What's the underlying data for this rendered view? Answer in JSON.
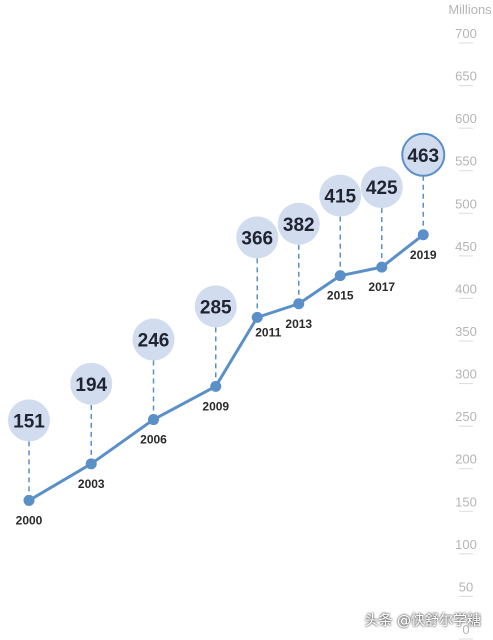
{
  "chart_data": {
    "type": "line",
    "unit_label": "Millions",
    "x": [
      "2000",
      "2003",
      "2006",
      "2009",
      "2011",
      "2013",
      "2015",
      "2017",
      "2019"
    ],
    "values": [
      151,
      194,
      246,
      285,
      366,
      382,
      415,
      425,
      463
    ],
    "ylim": [
      0,
      700
    ],
    "yticks": [
      0,
      50,
      100,
      150,
      200,
      250,
      300,
      350,
      400,
      450,
      500,
      550,
      600,
      650,
      700
    ],
    "highlight_last": true,
    "colors": {
      "line": "#5b8fc7",
      "bubble_fill": "#d2dcef",
      "bubble_border": "#5b8fc7",
      "tick": "#b5b5b5"
    }
  },
  "watermark": "头条 @快舒尔学糖"
}
